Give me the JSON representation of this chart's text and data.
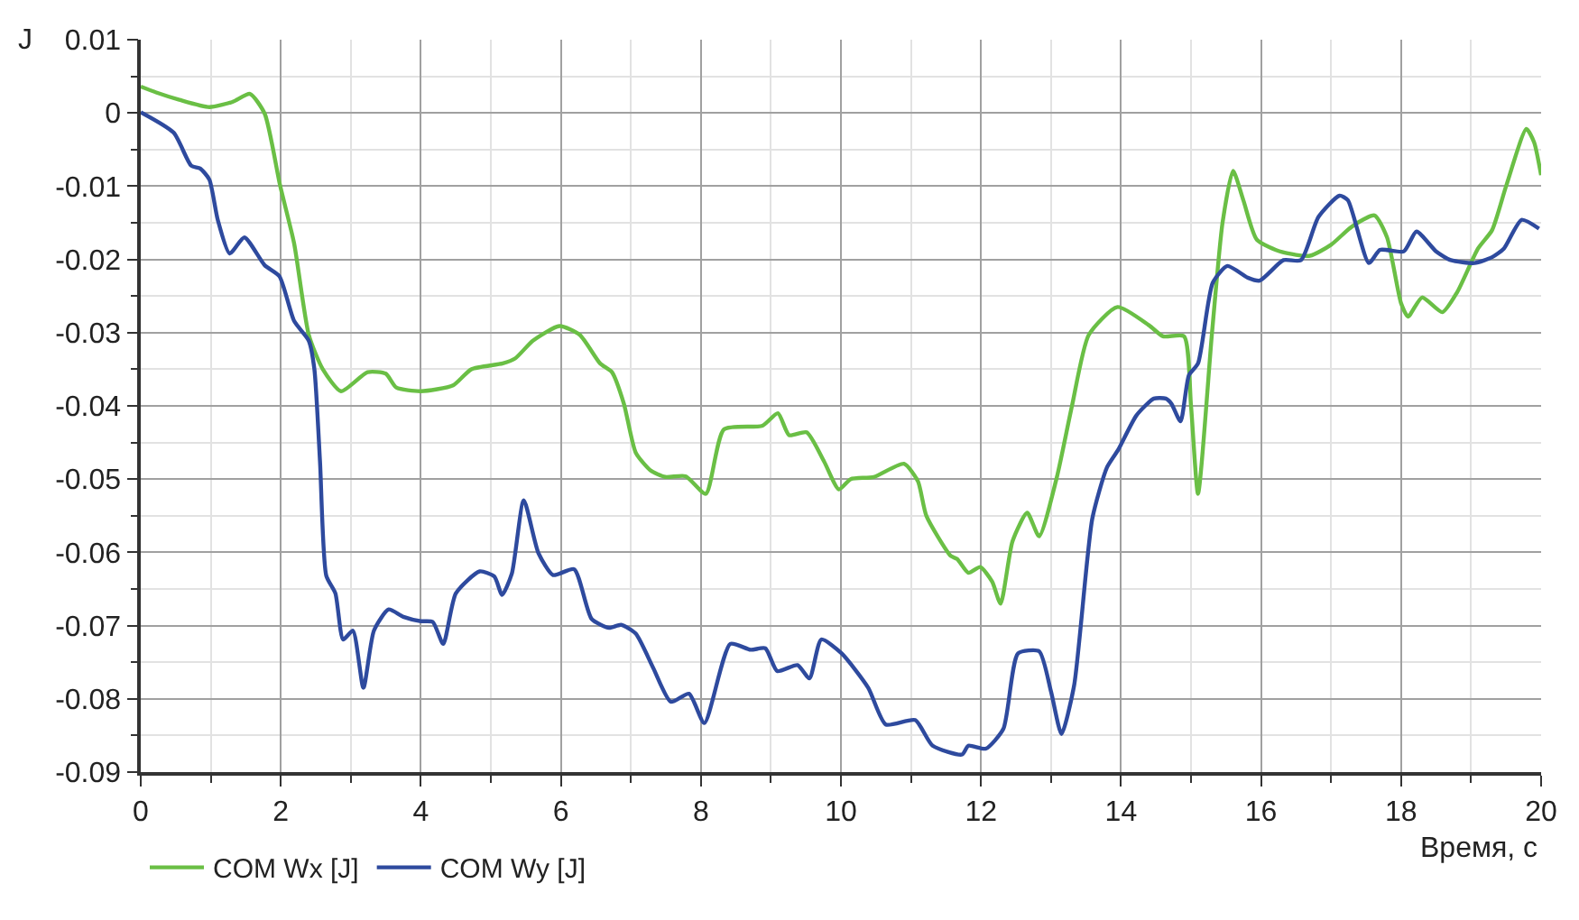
{
  "chart_data": {
    "type": "line",
    "xlabel": "Время, с",
    "ylabel": "J",
    "xlim": [
      0,
      20
    ],
    "xticks": [
      0,
      2,
      4,
      6,
      8,
      10,
      12,
      14,
      16,
      18,
      20
    ],
    "ylim": [
      -0.09,
      0.01
    ],
    "yticks": [
      0.01,
      0,
      -0.01,
      -0.02,
      -0.03,
      -0.04,
      -0.05,
      -0.06,
      -0.07,
      -0.08,
      -0.09
    ],
    "grid": true,
    "legend": "bottom left",
    "marker": "none",
    "line_style": "solid",
    "series": [
      {
        "name": "COM Wx [J]",
        "color": "#6abf45",
        "x": [
          0,
          0.22,
          0.55,
          0.98,
          1.31,
          1.56,
          1.77,
          1.99,
          2.19,
          2.4,
          2.6,
          2.86,
          3.24,
          3.5,
          3.65,
          4.0,
          4.46,
          4.72,
          5.17,
          5.35,
          5.6,
          5.98,
          6.27,
          6.56,
          6.73,
          6.9,
          7.07,
          7.28,
          7.49,
          7.78,
          8.07,
          8.33,
          8.88,
          9.1,
          9.26,
          9.51,
          9.76,
          9.97,
          10.14,
          10.47,
          10.9,
          11.1,
          11.22,
          11.57,
          11.66,
          11.82,
          11.99,
          12.16,
          12.28,
          12.45,
          12.66,
          12.83,
          13.08,
          13.3,
          13.54,
          13.95,
          14.4,
          14.6,
          14.9,
          15.0,
          15.1,
          15.3,
          15.45,
          15.6,
          15.75,
          15.94,
          16.3,
          16.7,
          17.0,
          17.3,
          17.62,
          17.8,
          18.0,
          18.1,
          18.3,
          18.59,
          18.8,
          19.1,
          19.3,
          19.5,
          19.79,
          19.9,
          20.0
        ],
        "values": [
          0.0036,
          0.0028,
          0.0018,
          0.0008,
          0.0015,
          0.0026,
          -0.0001,
          -0.0099,
          -0.0178,
          -0.0303,
          -0.035,
          -0.038,
          -0.0354,
          -0.0356,
          -0.0375,
          -0.038,
          -0.0372,
          -0.035,
          -0.0342,
          -0.0335,
          -0.0311,
          -0.0291,
          -0.0303,
          -0.0342,
          -0.0354,
          -0.0397,
          -0.0464,
          -0.0488,
          -0.0497,
          -0.0496,
          -0.052,
          -0.0432,
          -0.0427,
          -0.041,
          -0.044,
          -0.0436,
          -0.0476,
          -0.0514,
          -0.05,
          -0.0497,
          -0.0479,
          -0.0503,
          -0.055,
          -0.0605,
          -0.0609,
          -0.0628,
          -0.062,
          -0.064,
          -0.067,
          -0.0585,
          -0.0546,
          -0.0578,
          -0.0499,
          -0.04,
          -0.0303,
          -0.0265,
          -0.029,
          -0.0305,
          -0.0305,
          -0.04,
          -0.052,
          -0.03,
          -0.015,
          -0.0079,
          -0.012,
          -0.0173,
          -0.019,
          -0.0195,
          -0.018,
          -0.0155,
          -0.014,
          -0.017,
          -0.026,
          -0.0278,
          -0.0252,
          -0.0272,
          -0.0245,
          -0.0185,
          -0.016,
          -0.01,
          -0.0022,
          -0.004,
          -0.0085
        ]
      },
      {
        "name": "COM Wy [J]",
        "color": "#2e4a9e",
        "x": [
          0,
          0.47,
          0.72,
          0.85,
          0.98,
          1.1,
          1.27,
          1.48,
          1.77,
          1.98,
          2.19,
          2.4,
          2.48,
          2.56,
          2.65,
          2.78,
          2.89,
          3.03,
          3.18,
          3.33,
          3.54,
          3.75,
          4.0,
          4.17,
          4.32,
          4.5,
          4.84,
          5.05,
          5.16,
          5.3,
          5.47,
          5.68,
          5.89,
          6.19,
          6.44,
          6.69,
          6.86,
          7.07,
          7.32,
          7.57,
          7.83,
          8.05,
          8.42,
          8.71,
          8.92,
          9.09,
          9.38,
          9.55,
          9.72,
          10.01,
          10.39,
          10.64,
          11.06,
          11.31,
          11.73,
          11.82,
          12.07,
          12.32,
          12.53,
          12.83,
          13.0,
          13.15,
          13.33,
          13.59,
          13.8,
          13.96,
          14.22,
          14.47,
          14.64,
          14.72,
          14.85,
          14.97,
          15.1,
          15.31,
          15.52,
          15.81,
          15.98,
          16.32,
          16.57,
          16.82,
          17.12,
          17.24,
          17.54,
          17.7,
          18.04,
          18.22,
          18.5,
          18.71,
          19.05,
          19.3,
          19.47,
          19.72,
          19.97
        ],
        "values": [
          0.0001,
          -0.0027,
          -0.0072,
          -0.0076,
          -0.0091,
          -0.0146,
          -0.0192,
          -0.017,
          -0.0208,
          -0.0223,
          -0.0284,
          -0.0311,
          -0.035,
          -0.0476,
          -0.0632,
          -0.0656,
          -0.0719,
          -0.0707,
          -0.0785,
          -0.0707,
          -0.0678,
          -0.0688,
          -0.0694,
          -0.0695,
          -0.0725,
          -0.0656,
          -0.0626,
          -0.0633,
          -0.0658,
          -0.0629,
          -0.0529,
          -0.0601,
          -0.0631,
          -0.0623,
          -0.0691,
          -0.0703,
          -0.0699,
          -0.0711,
          -0.0758,
          -0.0804,
          -0.0793,
          -0.0833,
          -0.0725,
          -0.0733,
          -0.0731,
          -0.0762,
          -0.0754,
          -0.0772,
          -0.0719,
          -0.0738,
          -0.0785,
          -0.0835,
          -0.0829,
          -0.0864,
          -0.0876,
          -0.0864,
          -0.0868,
          -0.0841,
          -0.0738,
          -0.0735,
          -0.079,
          -0.0848,
          -0.0782,
          -0.0554,
          -0.0484,
          -0.046,
          -0.0413,
          -0.039,
          -0.039,
          -0.0397,
          -0.0421,
          -0.0358,
          -0.0342,
          -0.0232,
          -0.0209,
          -0.0225,
          -0.0229,
          -0.0201,
          -0.0201,
          -0.0142,
          -0.0113,
          -0.0119,
          -0.0205,
          -0.0187,
          -0.0189,
          -0.0162,
          -0.0189,
          -0.0201,
          -0.0205,
          -0.0197,
          -0.0185,
          -0.0146,
          -0.0158
        ]
      }
    ]
  }
}
